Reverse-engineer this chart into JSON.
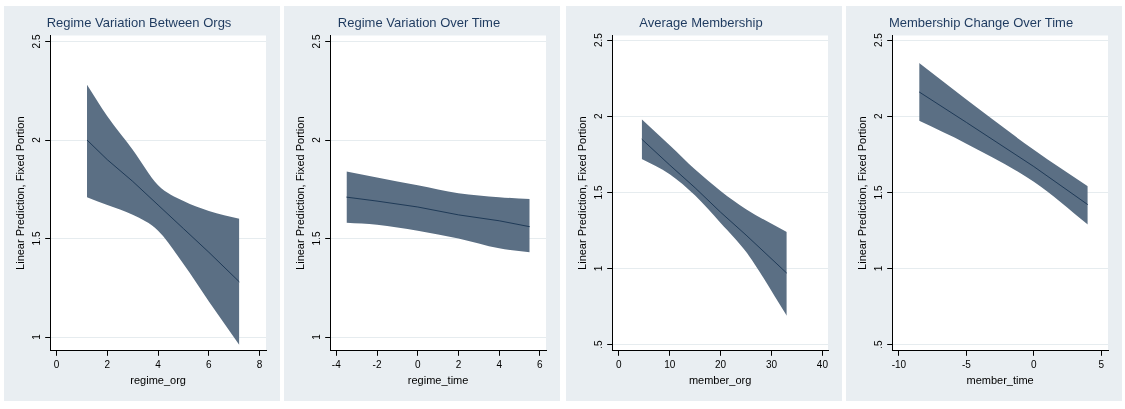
{
  "chart_data": [
    {
      "type": "line",
      "title": "Regime Variation Between Orgs",
      "xlabel": "regime_org",
      "ylabel": "Linear Prediction, Fixed Portion",
      "x": [
        1.2,
        2,
        3,
        4,
        5,
        6,
        7.2
      ],
      "series": [
        {
          "color": "#1f3a57",
          "values": [
            2.0,
            1.9,
            1.79,
            1.67,
            1.55,
            1.43,
            1.28
          ],
          "lower": [
            1.71,
            1.67,
            1.62,
            1.54,
            1.37,
            1.18,
            0.96
          ],
          "upper": [
            2.28,
            2.12,
            1.95,
            1.77,
            1.69,
            1.64,
            1.6
          ]
        }
      ],
      "xlim": [
        -0.25,
        8.25
      ],
      "xticks": [
        0,
        2,
        4,
        6,
        8
      ],
      "ylim": [
        0.93,
        2.53
      ],
      "yticks": [
        1,
        1.5,
        2,
        2.5
      ],
      "grid": "y"
    },
    {
      "type": "line",
      "title": "Regime Variation Over Time",
      "xlabel": "regime_time",
      "ylabel": "Linear Prediction, Fixed Portion",
      "x": [
        -3.5,
        -2,
        0,
        2,
        4,
        5.5
      ],
      "series": [
        {
          "color": "#1f3a57",
          "values": [
            1.71,
            1.69,
            1.66,
            1.62,
            1.59,
            1.56
          ],
          "lower": [
            1.58,
            1.57,
            1.54,
            1.5,
            1.45,
            1.43
          ],
          "upper": [
            1.84,
            1.81,
            1.77,
            1.73,
            1.71,
            1.7
          ]
        }
      ],
      "xlim": [
        -4.3,
        6.3
      ],
      "xticks": [
        -4,
        -2,
        0,
        2,
        4,
        6
      ],
      "ylim": [
        0.93,
        2.53
      ],
      "yticks": [
        1,
        1.5,
        2,
        2.5
      ],
      "grid": "y"
    },
    {
      "type": "line",
      "title": "Average Membership",
      "xlabel": "member_org",
      "ylabel": "Linear Prediction, Fixed Portion",
      "x": [
        4.5,
        10,
        15,
        20,
        25,
        33
      ],
      "series": [
        {
          "color": "#1f3a57",
          "values": [
            1.85,
            1.68,
            1.53,
            1.37,
            1.22,
            0.97
          ],
          "lower": [
            1.72,
            1.62,
            1.48,
            1.3,
            1.11,
            0.69
          ],
          "upper": [
            1.98,
            1.81,
            1.65,
            1.51,
            1.39,
            1.24
          ]
        }
      ],
      "xlim": [
        -1.3,
        41.1
      ],
      "xticks": [
        0,
        10,
        20,
        30,
        40
      ],
      "ylim": [
        0.46,
        2.53
      ],
      "yticks": [
        {
          "value": 0.5,
          "label": ".5"
        },
        1,
        1.5,
        2,
        2.5
      ],
      "grid": "y"
    },
    {
      "type": "line",
      "title": "Membership Change Over Time",
      "xlabel": "member_time",
      "ylabel": "Linear Prediction, Fixed Portion",
      "x": [
        -8.5,
        -5,
        0,
        4
      ],
      "series": [
        {
          "color": "#1f3a57",
          "values": [
            2.16,
            1.96,
            1.67,
            1.42
          ],
          "lower": [
            1.97,
            1.82,
            1.57,
            1.29
          ],
          "upper": [
            2.35,
            2.11,
            1.78,
            1.54
          ]
        }
      ],
      "xlim": [
        -10.5,
        5.5
      ],
      "xticks": [
        -10,
        -5,
        0,
        5
      ],
      "ylim": [
        0.46,
        2.53
      ],
      "yticks": [
        {
          "value": 0.5,
          "label": ".5"
        },
        1,
        1.5,
        2,
        2.5
      ],
      "grid": "y"
    }
  ]
}
